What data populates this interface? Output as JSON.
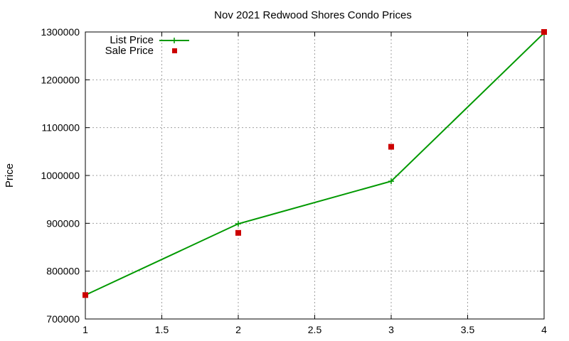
{
  "chart_data": {
    "type": "line",
    "title": "Nov 2021 Redwood Shores Condo Prices",
    "xlabel": "",
    "ylabel": "Price",
    "xlim": [
      1,
      4
    ],
    "ylim": [
      700000,
      1300000
    ],
    "xticks": [
      "1",
      "1.5",
      "2",
      "2.5",
      "3",
      "3.5",
      "4"
    ],
    "yticks": [
      "700000",
      "800000",
      "900000",
      "1000000",
      "1100000",
      "1200000",
      "1300000"
    ],
    "grid": true,
    "legend_position": "top-left",
    "series": [
      {
        "name": "List Price",
        "style": "line+cross",
        "color": "#009900",
        "points": [
          {
            "x": 1,
            "y": 750000
          },
          {
            "x": 2,
            "y": 899000
          },
          {
            "x": 3,
            "y": 988000
          },
          {
            "x": 4,
            "y": 1298000
          }
        ]
      },
      {
        "name": "Sale Price",
        "style": "square",
        "color": "#cc0000",
        "points": [
          {
            "x": 1,
            "y": 750000
          },
          {
            "x": 2,
            "y": 880000
          },
          {
            "x": 3,
            "y": 1060000
          },
          {
            "x": 4,
            "y": 1300000
          }
        ]
      }
    ]
  }
}
